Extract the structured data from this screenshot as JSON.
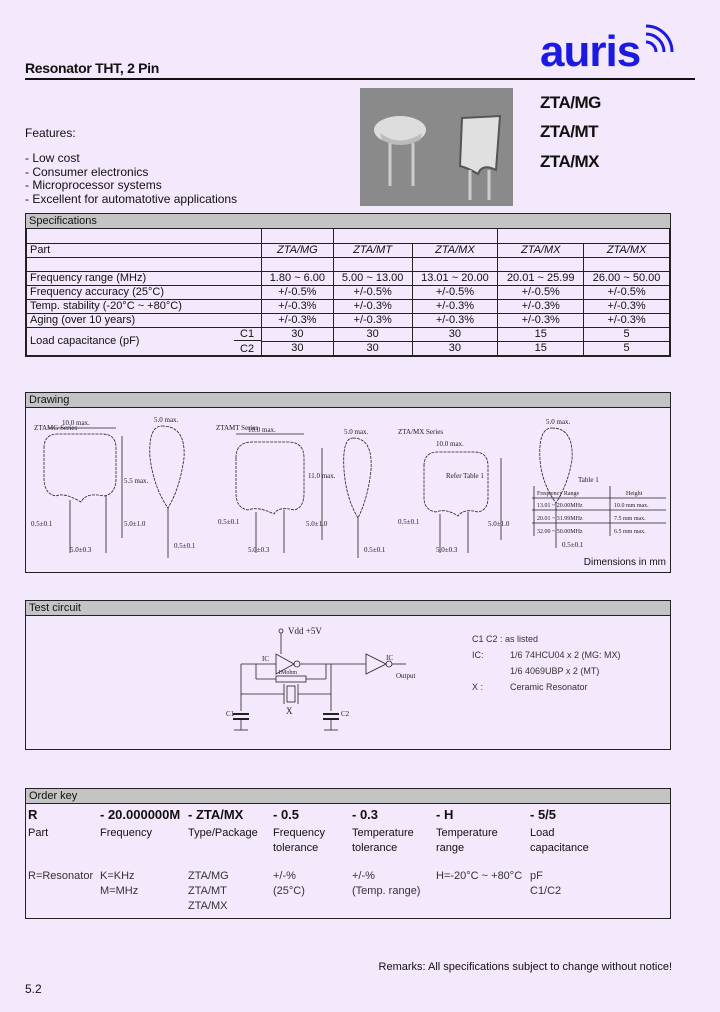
{
  "header": {
    "title": "Resonator THT, 2 Pin",
    "logo_text": "auris",
    "models": [
      "ZTA/MG",
      "ZTA/MT",
      "ZTA/MX"
    ]
  },
  "features": {
    "heading": "Features:",
    "items": [
      "- Low cost",
      "- Consumer electronics",
      "- Microprocessor systems",
      "- Excellent for automatotive applications"
    ]
  },
  "specs": {
    "heading": "Specifications",
    "part_label": "Part",
    "parts": [
      "ZTA/MG",
      "ZTA/MT",
      "ZTA/MX",
      "ZTA/MX",
      "ZTA/MX"
    ],
    "rows": [
      {
        "label": "Frequency range (MHz)",
        "values": [
          "1.80 ~ 6.00",
          "5.00 ~ 13.00",
          "13.01 ~ 20.00",
          "20.01 ~ 25.99",
          "26.00 ~ 50.00"
        ]
      },
      {
        "label": "Frequency accuracy (25°C)",
        "values": [
          "+/-0.5%",
          "+/-0.5%",
          "+/-0.5%",
          "+/-0.5%",
          "+/-0.5%"
        ]
      },
      {
        "label": "Temp. stability (-20°C ~ +80°C)",
        "values": [
          "+/-0.3%",
          "+/-0.3%",
          "+/-0.3%",
          "+/-0.3%",
          "+/-0.3%"
        ]
      },
      {
        "label": "Aging (over 10 years)",
        "values": [
          "+/-0.3%",
          "+/-0.3%",
          "+/-0.3%",
          "+/-0.3%",
          "+/-0.3%"
        ]
      }
    ],
    "load": {
      "label": "Load capacitance  (pF)",
      "c1_label": "C1",
      "c2_label": "C2",
      "c1": [
        "30",
        "30",
        "30",
        "15",
        "5"
      ],
      "c2": [
        "30",
        "30",
        "30",
        "15",
        "5"
      ]
    }
  },
  "drawing": {
    "heading": "Drawing",
    "mg": {
      "series": "ZTAMG Series",
      "width": "10.0 max.",
      "thick": "5.0 max.",
      "height": "5.5 max.",
      "lead": "5.0±1.0",
      "dia": "0.5±0.1",
      "pitch": "5.0±0.3",
      "wire": "0.5±0.1"
    },
    "mt": {
      "series": "ZTAMT Series",
      "width": "10.0 max.",
      "thick": "5.0 max.",
      "height": "11.0 max.",
      "lead": "5.0±1.0",
      "dia": "0.5±0.1",
      "pitch": "5.0±0.3",
      "wire": "0.5±0.1"
    },
    "mx": {
      "series": "ZTA/MX Series",
      "width": "10.0 max.",
      "thick": "5.0 max.",
      "height": "Refer Table 1",
      "lead": "5.0±1.0",
      "dia": "0.5±0.1",
      "pitch": "5.0±0.3",
      "wire": "0.5±0.1"
    },
    "table1": {
      "title": "Table 1",
      "headers": [
        "Frequency Range",
        "Height"
      ],
      "rows": [
        [
          "13.01 ~ 20.00MHz",
          "10.0 mm max."
        ],
        [
          "20.01 ~ 31.99MHz",
          "7.5 mm max."
        ],
        [
          "32.00 ~ 50.00MHz",
          "6.5 mm max."
        ]
      ]
    },
    "units": "Dimensions in mm"
  },
  "test_circuit": {
    "heading": "Test circuit",
    "vdd": "Vdd  +5V",
    "labels": {
      "ic1": "IC",
      "ic2": "IC",
      "rf": "1Mohm",
      "x": "X",
      "c1": "C1",
      "c2": "C2",
      "output": "Output"
    },
    "notes": [
      [
        "C1  C2 : as listed",
        ""
      ],
      [
        "IC:",
        "1/6   74HCU04 x 2 (MG: MX)"
      ],
      [
        "",
        "1/6   4069UBP x 2  (MT)"
      ],
      [
        "X  :",
        "Ceramic Resonator"
      ]
    ]
  },
  "order_key": {
    "heading": "Order key",
    "columns": [
      {
        "code": "R",
        "label": [
          "Part",
          ""
        ],
        "desc": [
          "R=Resonator"
        ]
      },
      {
        "code": "- 20.000000M",
        "label": [
          "Frequency",
          ""
        ],
        "desc": [
          "K=KHz",
          "M=MHz"
        ]
      },
      {
        "code": "- ZTA/MX",
        "label": [
          "Type/Package",
          ""
        ],
        "desc": [
          "ZTA/MG",
          "ZTA/MT",
          "ZTA/MX"
        ]
      },
      {
        "code": "- 0.5",
        "label": [
          "Frequency",
          "tolerance"
        ],
        "desc": [
          "+/-%",
          "(25°C)"
        ]
      },
      {
        "code": "- 0.3",
        "label": [
          "Temperature",
          "tolerance"
        ],
        "desc": [
          "+/-%",
          "(Temp. range)"
        ]
      },
      {
        "code": "- H",
        "label": [
          "Temperature",
          "range"
        ],
        "desc": [
          "H=-20°C ~ +80°C"
        ]
      },
      {
        "code": "- 5/5",
        "label": [
          "Load",
          "capacitance"
        ],
        "desc": [
          "pF",
          "C1/C2"
        ]
      }
    ]
  },
  "footer": {
    "remarks": "Remarks: All specifications subject to change without notice!",
    "page": "5.2"
  },
  "colors": {
    "background": "#f4e8fc",
    "header_bar": "#c4c4c4",
    "logo": "#1a1ae0"
  }
}
